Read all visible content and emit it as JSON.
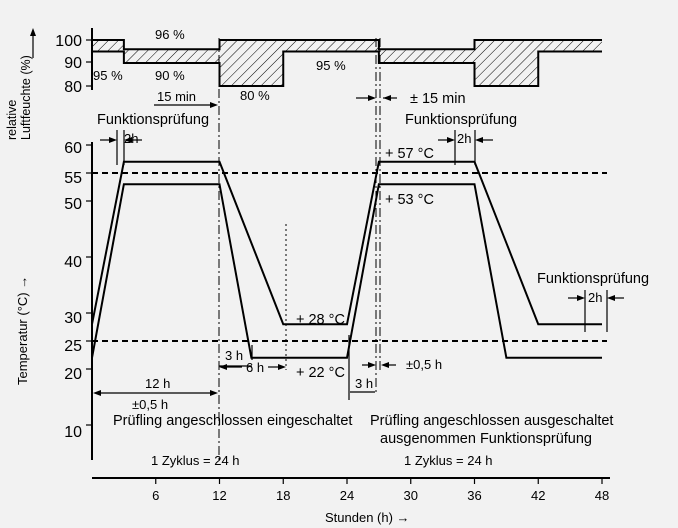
{
  "humidity": {
    "axis_title": "relative\nLuftfeuchte (%)",
    "ticks": [
      "100",
      "90",
      "80"
    ],
    "labels": {
      "p96": "96 %",
      "p95_left": "95 %",
      "p90": "90 %",
      "p80": "80 %",
      "p95_mid": "95 %",
      "min15": "15 min",
      "pm15min": "± 15 min"
    },
    "upper_limit": [
      [
        0,
        100
      ],
      [
        3,
        100
      ],
      [
        3,
        96
      ],
      [
        12,
        96
      ],
      [
        12,
        100
      ],
      [
        27,
        100
      ],
      [
        27,
        96
      ],
      [
        36,
        96
      ],
      [
        36,
        100
      ],
      [
        48,
        100
      ]
    ],
    "lower_limit": [
      [
        0,
        95
      ],
      [
        3,
        95
      ],
      [
        3,
        90
      ],
      [
        12,
        90
      ],
      [
        12,
        80
      ],
      [
        18,
        80
      ],
      [
        18,
        95
      ],
      [
        27,
        95
      ],
      [
        27,
        90
      ],
      [
        36,
        90
      ],
      [
        36,
        80
      ],
      [
        42,
        80
      ],
      [
        42,
        95
      ],
      [
        48,
        95
      ]
    ]
  },
  "temperature": {
    "axis_title": "Temperatur (°C) →",
    "ticks": [
      "60",
      "55",
      "50",
      "40",
      "30",
      "25",
      "20",
      "10"
    ],
    "upper_profile": [
      [
        0,
        28
      ],
      [
        3,
        57
      ],
      [
        12,
        57
      ],
      [
        18,
        28
      ],
      [
        24,
        28
      ],
      [
        27,
        57
      ],
      [
        36,
        57
      ],
      [
        42,
        28
      ],
      [
        48,
        28
      ]
    ],
    "lower_profile": [
      [
        0,
        22
      ],
      [
        3,
        53
      ],
      [
        12,
        53
      ],
      [
        15,
        22
      ],
      [
        24,
        22
      ],
      [
        27,
        53
      ],
      [
        36,
        53
      ],
      [
        39,
        22
      ],
      [
        48,
        22
      ]
    ],
    "ref_lines": [
      55,
      25
    ],
    "labels": {
      "funk_left": "Funktionsprüfung",
      "funk_right": "Funktionsprüfung",
      "funk_low": "Funktionsprüfung",
      "h2_a": "2h",
      "h2_b": "2h",
      "h2_c": "2h",
      "t57": "+ 57 °C",
      "t53": "+ 53 °C",
      "t28": "+ 28 °C",
      "t22": "+ 22 °C",
      "h3_a": "3 h",
      "h6": "6 h",
      "h3_b": "3 h",
      "pm05_a": "±0,5 h",
      "h12": "12 h",
      "pm05_b": "±0,5 h",
      "pruef_ein": "Prüfling angeschlossen eingeschaltet",
      "pruef_aus1": "Prüfling angeschlossen ausgeschaltet",
      "pruef_aus2": "ausgenommen Funktionsprüfung",
      "zyklus1": "1 Zyklus = 24 h",
      "zyklus2": "1 Zyklus = 24 h"
    }
  },
  "x_axis": {
    "title": "Stunden (h) →",
    "ticks": [
      "6",
      "12",
      "18",
      "24",
      "30",
      "36",
      "42",
      "48"
    ]
  }
}
